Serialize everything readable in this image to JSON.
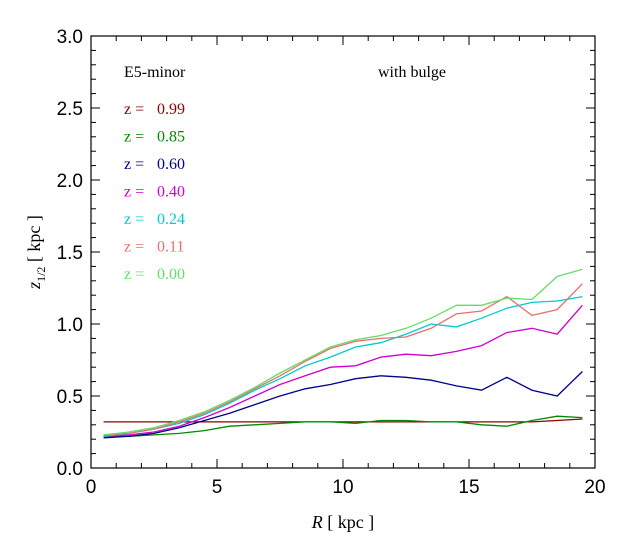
{
  "chart_data": {
    "type": "line",
    "xlabel": "R [ kpc ]",
    "ylabel": "z1/2 [ kpc ]",
    "xlim": [
      0,
      20
    ],
    "ylim": [
      0.0,
      3.0
    ],
    "xticks": [
      0,
      5,
      10,
      15,
      20
    ],
    "xtick_labels": [
      "0",
      "5",
      "10",
      "15",
      "20"
    ],
    "yticks": [
      0.0,
      0.5,
      1.0,
      1.5,
      2.0,
      2.5,
      3.0
    ],
    "ytick_labels": [
      "0.0",
      "0.5",
      "1.0",
      "1.5",
      "2.0",
      "2.5",
      "3.0"
    ],
    "grid": false,
    "annotations": {
      "model": "E5-minor",
      "variant": "with bulge"
    },
    "legend_placement": "upper-left",
    "x": [
      0.5,
      1.5,
      2.5,
      3.5,
      4.5,
      5.5,
      6.5,
      7.5,
      8.5,
      9.5,
      10.5,
      11.5,
      12.5,
      13.5,
      14.5,
      15.5,
      16.5,
      17.5,
      18.5,
      19.5
    ],
    "series": [
      {
        "name": "z = 0.99",
        "label_prefix": "z =",
        "label_value": "0.99",
        "color": "#8b0000",
        "values": [
          0.32,
          0.32,
          0.32,
          0.32,
          0.32,
          0.32,
          0.32,
          0.32,
          0.32,
          0.32,
          0.32,
          0.32,
          0.32,
          0.32,
          0.32,
          0.32,
          0.32,
          0.32,
          0.33,
          0.34
        ]
      },
      {
        "name": "z = 0.85",
        "label_prefix": "z =",
        "label_value": "0.85",
        "color": "#008b00",
        "values": [
          0.22,
          0.22,
          0.23,
          0.24,
          0.26,
          0.29,
          0.3,
          0.31,
          0.32,
          0.32,
          0.31,
          0.33,
          0.33,
          0.32,
          0.32,
          0.3,
          0.29,
          0.33,
          0.36,
          0.35
        ]
      },
      {
        "name": "z = 0.60",
        "label_prefix": "z =",
        "label_value": "0.60",
        "color": "#00008b",
        "values": [
          0.21,
          0.22,
          0.24,
          0.28,
          0.33,
          0.38,
          0.44,
          0.5,
          0.55,
          0.58,
          0.62,
          0.64,
          0.63,
          0.61,
          0.57,
          0.54,
          0.63,
          0.54,
          0.5,
          0.67
        ]
      },
      {
        "name": "z = 0.40",
        "label_prefix": "z =",
        "label_value": "0.40",
        "color": "#d000d0",
        "values": [
          0.22,
          0.23,
          0.25,
          0.29,
          0.35,
          0.42,
          0.5,
          0.58,
          0.64,
          0.7,
          0.71,
          0.77,
          0.79,
          0.78,
          0.81,
          0.85,
          0.94,
          0.97,
          0.93,
          1.13
        ]
      },
      {
        "name": "z = 0.24",
        "label_prefix": "z =",
        "label_value": "0.24",
        "color": "#00cccc",
        "values": [
          0.22,
          0.24,
          0.27,
          0.31,
          0.37,
          0.45,
          0.54,
          0.62,
          0.71,
          0.77,
          0.84,
          0.87,
          0.93,
          1.0,
          0.98,
          1.04,
          1.11,
          1.15,
          1.16,
          1.19
        ]
      },
      {
        "name": "z = 0.11",
        "label_prefix": "z =",
        "label_value": "0.11",
        "color": "#e87070",
        "values": [
          0.23,
          0.24,
          0.27,
          0.32,
          0.38,
          0.46,
          0.55,
          0.64,
          0.74,
          0.83,
          0.88,
          0.9,
          0.91,
          0.97,
          1.07,
          1.09,
          1.19,
          1.06,
          1.1,
          1.28
        ]
      },
      {
        "name": "z = 0.00",
        "label_prefix": "z =",
        "label_value": "0.00",
        "color": "#66dd66",
        "values": [
          0.23,
          0.25,
          0.28,
          0.33,
          0.39,
          0.47,
          0.56,
          0.66,
          0.75,
          0.84,
          0.89,
          0.92,
          0.97,
          1.04,
          1.13,
          1.13,
          1.18,
          1.17,
          1.33,
          1.38
        ]
      }
    ]
  }
}
